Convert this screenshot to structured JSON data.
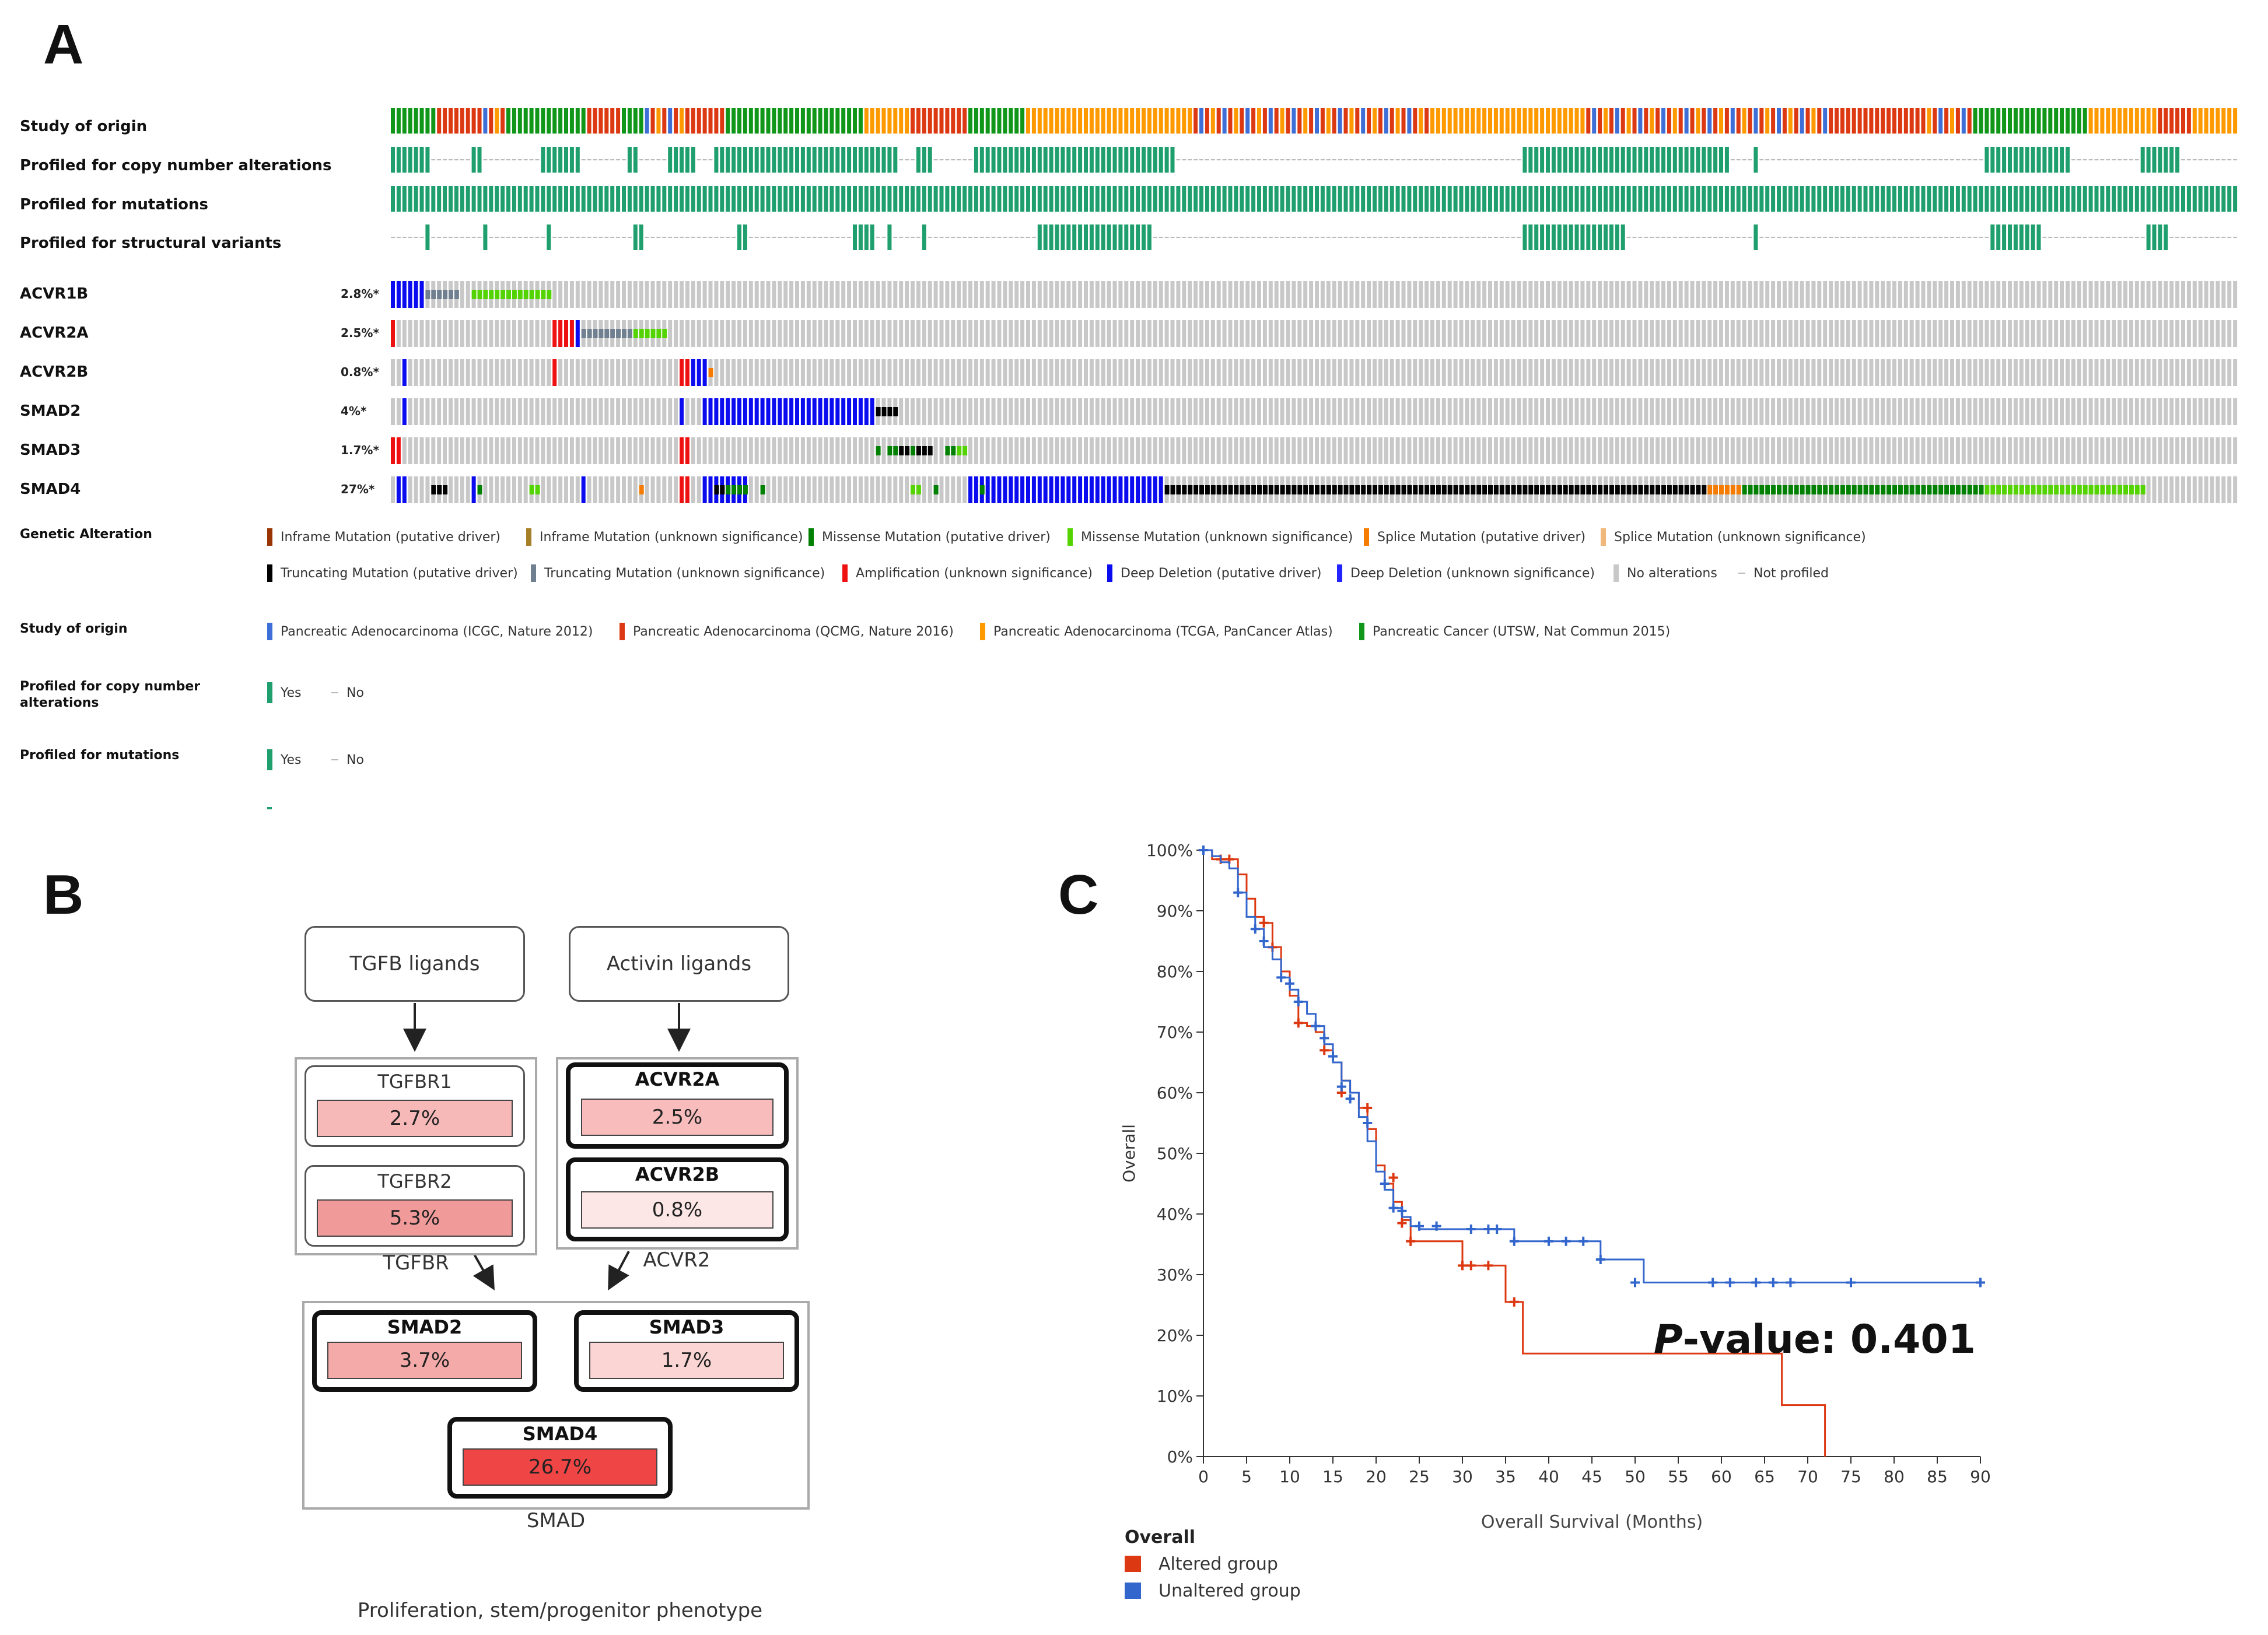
{
  "panels": {
    "a": "A",
    "b": "B",
    "c": "C"
  },
  "oncoprint": {
    "track_labels": [
      "Study of origin",
      "Profiled for copy number alterations",
      "Profiled for mutations",
      "Profiled for structural variants"
    ],
    "genes": [
      {
        "name": "ACVR1B",
        "pct": "2.8%*"
      },
      {
        "name": "ACVR2A",
        "pct": "2.5%*"
      },
      {
        "name": "ACVR2B",
        "pct": "0.8%*"
      },
      {
        "name": "SMAD2",
        "pct": "4%*"
      },
      {
        "name": "SMAD3",
        "pct": "1.7%*"
      },
      {
        "name": "SMAD4",
        "pct": "27%*"
      }
    ],
    "colors": {
      "study_icgc": "#3d6fd6",
      "study_qcmg": "#dc3912",
      "study_tcga": "#ff9900",
      "study_utsw": "#109618",
      "profiled": "#1f9e6e",
      "no_alt": "#c8c8c8",
      "deep_del": "#0b0bf0",
      "amp": "#ee1111",
      "trunc_driver": "#000000",
      "trunc_vus": "#708090",
      "missense_driver": "#008000",
      "missense_vus": "#53d400",
      "inframe_driver": "#993404",
      "inframe_vus": "#a68028",
      "splice_driver": "#f57c00",
      "splice_vus": "#f0b87b"
    },
    "legend": {
      "genetic_alteration_title": "Genetic Alteration",
      "genetic_alteration_row1": [
        {
          "label": "Inframe Mutation (putative driver)",
          "color": "#993404"
        },
        {
          "label": "Inframe Mutation (unknown significance)",
          "color": "#a68028"
        },
        {
          "label": "Missense Mutation (putative driver)",
          "color": "#008000"
        },
        {
          "label": "Missense Mutation (unknown significance)",
          "color": "#53d400"
        },
        {
          "label": "Splice Mutation (putative driver)",
          "color": "#f57c00"
        },
        {
          "label": "Splice Mutation (unknown significance)",
          "color": "#f0b87b"
        }
      ],
      "genetic_alteration_row2": [
        {
          "label": "Truncating Mutation (putative driver)",
          "color": "#000000"
        },
        {
          "label": "Truncating Mutation (unknown significance)",
          "color": "#708090"
        },
        {
          "label": "Amplification (unknown significance)",
          "color": "#ee1111"
        },
        {
          "label": "Deep Deletion (putative driver)",
          "color": "#0b0bf0"
        },
        {
          "label": "Deep Deletion (unknown significance)",
          "color": "#2323ff"
        },
        {
          "label": "No alterations",
          "color": "#c8c8c8"
        }
      ],
      "not_profiled": "Not profiled",
      "study_title": "Study of origin",
      "studies": [
        {
          "label": "Pancreatic Adenocarcinoma (ICGC, Nature 2012)",
          "color": "#3d6fd6"
        },
        {
          "label": "Pancreatic Adenocarcinoma (QCMG, Nature 2016)",
          "color": "#dc3912"
        },
        {
          "label": "Pancreatic Adenocarcinoma (TCGA, PanCancer Atlas)",
          "color": "#ff9900"
        },
        {
          "label": "Pancreatic Cancer (UTSW, Nat Commun 2015)",
          "color": "#109618"
        }
      ],
      "cna_title": "Profiled for copy number alterations",
      "mut_title": "Profiled for mutations",
      "yes": "Yes",
      "no": "No"
    }
  },
  "pathway": {
    "tgfb_ligands": "TGFB ligands",
    "activin_ligands": "Activin ligands",
    "tgfbr1": {
      "name": "TGFBR1",
      "value": "2.7%"
    },
    "tgfbr2": {
      "name": "TGFBR2",
      "value": "5.3%"
    },
    "acvr2a": {
      "name": "ACVR2A",
      "value": "2.5%"
    },
    "acvr2b": {
      "name": "ACVR2B",
      "value": "0.8%"
    },
    "smad2": {
      "name": "SMAD2",
      "value": "3.7%"
    },
    "smad3": {
      "name": "SMAD3",
      "value": "1.7%"
    },
    "smad4": {
      "name": "SMAD4",
      "value": "26.7%"
    },
    "tgfbr_caption": "TGFBR",
    "acvr2_caption": "ACVR2",
    "smad_caption": "SMAD",
    "outcome": "Proliferation, stem/progenitor phenotype"
  },
  "chart_data": {
    "type": "line",
    "title": "",
    "xlabel": "Overall Survival (Months)",
    "ylabel": "Overall",
    "xlim": [
      0,
      90
    ],
    "ylim": [
      0,
      100
    ],
    "xticks": [
      0,
      5,
      10,
      15,
      20,
      25,
      30,
      35,
      40,
      45,
      50,
      55,
      60,
      65,
      70,
      75,
      80,
      85,
      90
    ],
    "yticks": [
      0,
      10,
      20,
      30,
      40,
      50,
      60,
      70,
      80,
      90,
      100
    ],
    "ytick_labels": [
      "0%",
      "10%",
      "20%",
      "30%",
      "40%",
      "50%",
      "60%",
      "70%",
      "80%",
      "90%",
      "100%"
    ],
    "annotation_prefix": "P",
    "annotation_rest": "-value: 0.401",
    "legend_title": "Overall",
    "series": [
      {
        "name": "Altered group",
        "color": "#dc3912",
        "x": [
          0,
          1,
          3,
          4,
          5,
          6,
          7,
          8,
          9,
          10,
          11,
          12,
          13,
          14,
          15,
          16,
          17,
          18,
          19,
          20,
          21,
          22,
          23,
          24,
          30,
          35,
          37,
          67,
          72
        ],
        "y": [
          100,
          98.5,
          98.5,
          96,
          92,
          89,
          88,
          84,
          80,
          76,
          71.5,
          71,
          70,
          67,
          65,
          62,
          60,
          57.5,
          54,
          48,
          45,
          42,
          39,
          35.5,
          31.5,
          25.5,
          17,
          8.5,
          0
        ],
        "censored_x": [
          2,
          3,
          7,
          8,
          11,
          14,
          16,
          19,
          22,
          23,
          24,
          30,
          31,
          33,
          36
        ],
        "censored_y": [
          98.5,
          98.5,
          88,
          84,
          71.5,
          67,
          60,
          57.5,
          46,
          38.5,
          35.5,
          31.5,
          31.5,
          31.5,
          25.5
        ]
      },
      {
        "name": "Unaltered group",
        "color": "#3366cc",
        "x": [
          0,
          1,
          2,
          3,
          4,
          5,
          6,
          7,
          8,
          9,
          10,
          11,
          12,
          13,
          14,
          15,
          16,
          17,
          18,
          19,
          20,
          21,
          22,
          23,
          24,
          25,
          33,
          35,
          36,
          40,
          44,
          46,
          50,
          51,
          90
        ],
        "y": [
          100,
          99,
          98,
          97,
          93,
          89,
          87,
          84,
          82,
          79,
          77,
          75,
          73,
          71,
          68,
          65,
          62,
          60,
          56,
          52,
          47,
          44,
          41,
          39.5,
          38,
          37.5,
          37.5,
          37.5,
          35.5,
          35.5,
          35.5,
          32.5,
          32.5,
          28.7,
          28.7
        ],
        "censored_x": [
          0,
          4,
          6,
          7,
          9,
          10,
          11,
          13,
          14,
          15,
          16,
          17,
          19,
          21,
          22,
          23,
          25,
          27,
          31,
          33,
          34,
          36,
          40,
          42,
          44,
          46,
          50,
          59,
          61,
          64,
          66,
          68,
          75,
          90
        ],
        "censored_y": [
          100,
          93,
          87,
          85,
          79,
          78,
          75,
          71,
          69,
          66,
          61,
          59,
          55,
          45,
          41,
          40.5,
          38,
          38,
          37.5,
          37.5,
          37.5,
          35.5,
          35.5,
          35.5,
          35.5,
          32.5,
          28.7,
          28.7,
          28.7,
          28.7,
          28.7,
          28.7,
          28.7,
          28.7
        ]
      }
    ]
  }
}
